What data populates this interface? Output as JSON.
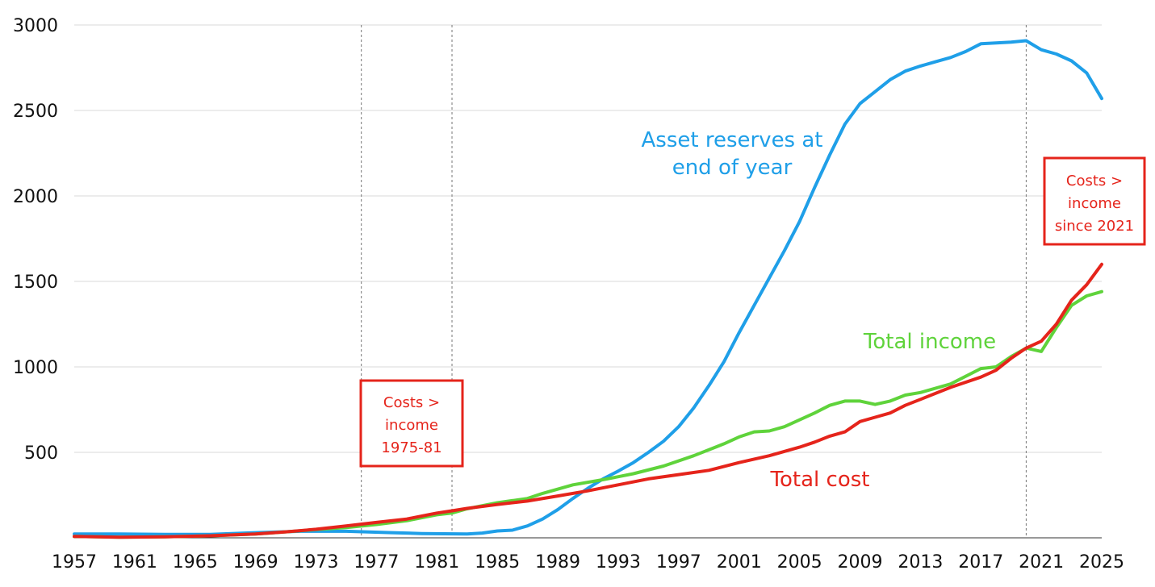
{
  "chart_data": {
    "type": "line",
    "title": "",
    "xlabel": "",
    "ylabel": "",
    "xlim": [
      1957,
      2025
    ],
    "ylim": [
      0,
      3000
    ],
    "x_ticks": [
      "1957",
      "1961",
      "1965",
      "1969",
      "1973",
      "1977",
      "1981",
      "1985",
      "1989",
      "1993",
      "1997",
      "2001",
      "2005",
      "2009",
      "2013",
      "2017",
      "2021",
      "2025"
    ],
    "y_ticks": [
      "500",
      "1000",
      "1500",
      "2000",
      "2500",
      "3000"
    ],
    "grid": "horizontal",
    "reference_lines": [
      1976,
      1982,
      2020
    ],
    "colors": {
      "reserves": "#1f9fe8",
      "income": "#5fd33b",
      "cost": "#e5241b"
    },
    "series": [
      {
        "name": "Asset reserves at end of year",
        "label_lines": [
          "Asset reserves at",
          "end of year"
        ],
        "color": "#1f9fe8",
        "x": [
          1957,
          1960,
          1963,
          1966,
          1969,
          1972,
          1975,
          1978,
          1980,
          1983,
          1984,
          1985,
          1986,
          1987,
          1988,
          1989,
          1990,
          1991,
          1992,
          1993,
          1994,
          1995,
          1996,
          1997,
          1998,
          1999,
          2000,
          2001,
          2002,
          2003,
          2004,
          2005,
          2006,
          2007,
          2008,
          2009,
          2010,
          2011,
          2012,
          2013,
          2014,
          2015,
          2016,
          2017,
          2018,
          2019,
          2020,
          2021,
          2022,
          2023,
          2024,
          2025
        ],
        "values": [
          22,
          22,
          20,
          20,
          30,
          38,
          38,
          30,
          25,
          22,
          28,
          40,
          45,
          70,
          110,
          165,
          230,
          290,
          345,
          390,
          440,
          500,
          565,
          650,
          760,
          890,
          1030,
          1200,
          1360,
          1520,
          1680,
          1850,
          2050,
          2240,
          2420,
          2540,
          2610,
          2680,
          2730,
          2760,
          2785,
          2810,
          2845,
          2890,
          2895,
          2900,
          2908,
          2855,
          2830,
          2790,
          2720,
          2570
        ]
      },
      {
        "name": "Total income",
        "label_lines": [
          "Total income"
        ],
        "color": "#5fd33b",
        "x": [
          1957,
          1960,
          1963,
          1966,
          1969,
          1971,
          1973,
          1975,
          1977,
          1979,
          1981,
          1982,
          1983,
          1985,
          1987,
          1988,
          1990,
          1992,
          1994,
          1996,
          1998,
          2000,
          2001,
          2002,
          2003,
          2004,
          2006,
          2007,
          2008,
          2009,
          2010,
          2011,
          2012,
          2013,
          2015,
          2017,
          2018,
          2019,
          2020,
          2021,
          2022,
          2023,
          2024,
          2025
        ],
        "values": [
          8,
          4,
          6,
          12,
          22,
          35,
          48,
          60,
          78,
          100,
          135,
          145,
          170,
          205,
          230,
          260,
          310,
          340,
          375,
          420,
          480,
          550,
          590,
          620,
          625,
          650,
          730,
          775,
          800,
          800,
          780,
          800,
          835,
          850,
          900,
          990,
          1000,
          1060,
          1110,
          1090,
          1230,
          1360,
          1415,
          1440
        ]
      },
      {
        "name": "Total cost",
        "label_lines": [
          "Total cost"
        ],
        "color": "#e5241b",
        "x": [
          1957,
          1960,
          1963,
          1966,
          1969,
          1971,
          1973,
          1975,
          1977,
          1979,
          1981,
          1982,
          1983,
          1985,
          1987,
          1989,
          1991,
          1993,
          1995,
          1997,
          1999,
          2001,
          2003,
          2005,
          2006,
          2007,
          2008,
          2009,
          2010,
          2011,
          2012,
          2013,
          2015,
          2017,
          2018,
          2019,
          2020,
          2021,
          2022,
          2023,
          2024,
          2025
        ],
        "values": [
          8,
          4,
          6,
          12,
          22,
          35,
          50,
          70,
          90,
          110,
          145,
          158,
          172,
          195,
          215,
          245,
          275,
          310,
          345,
          370,
          395,
          440,
          480,
          530,
          560,
          595,
          620,
          680,
          705,
          730,
          775,
          810,
          880,
          940,
          980,
          1050,
          1110,
          1150,
          1250,
          1390,
          1480,
          1600
        ]
      }
    ],
    "annotations": [
      {
        "lines": [
          "Costs >",
          "income",
          "1975-81"
        ],
        "color": "#e5241b"
      },
      {
        "lines": [
          "Costs >",
          "income",
          "since 2021"
        ],
        "color": "#e5241b"
      }
    ]
  }
}
